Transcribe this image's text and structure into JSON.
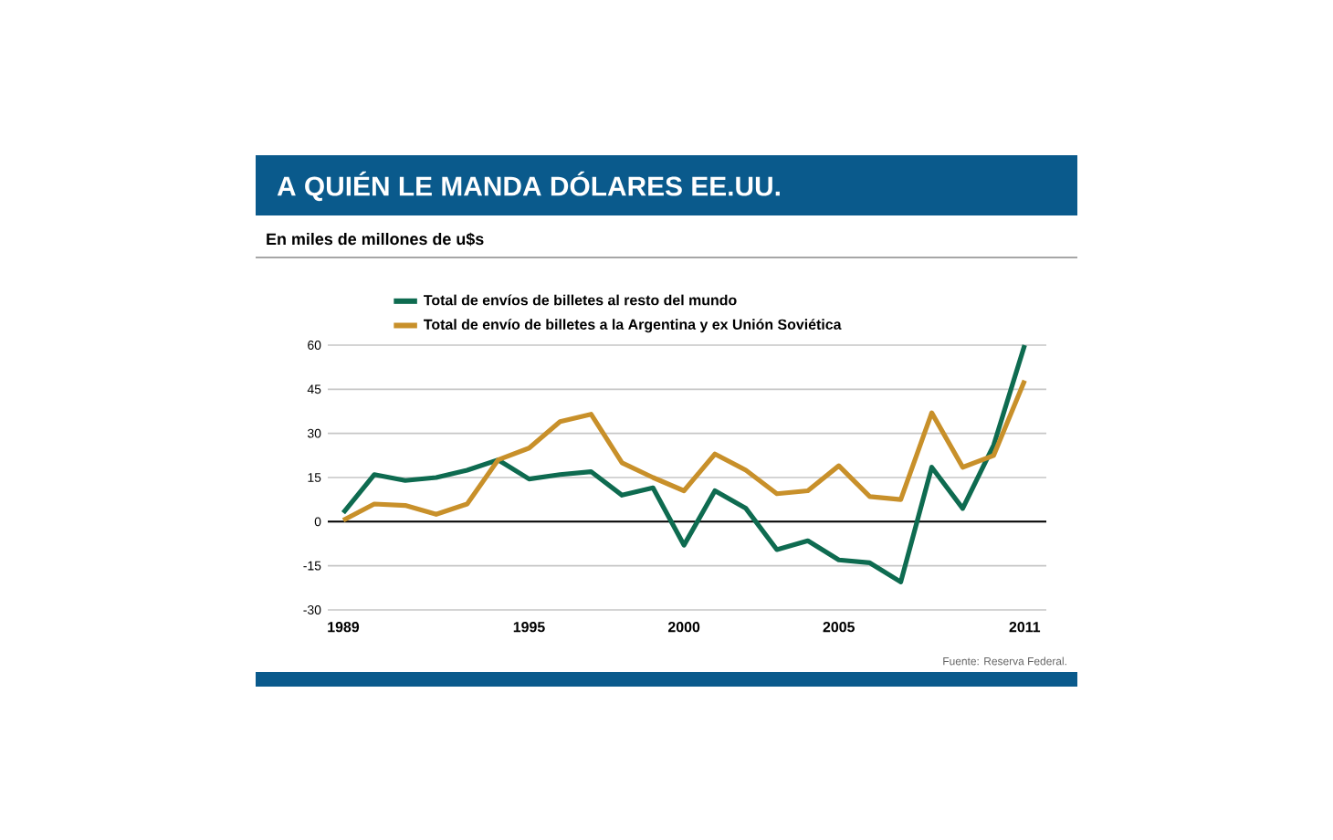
{
  "chart_data": {
    "type": "line",
    "title": "A QUIÉN LE MANDA DÓLARES EE.UU.",
    "subtitle": "En miles de millones de u$s",
    "annotations": [
      "Fuente: Reserva Federal."
    ],
    "x": [
      1989,
      1990,
      1991,
      1992,
      1993,
      1994,
      1995,
      1996,
      1997,
      1998,
      1999,
      2000,
      2001,
      2002,
      2003,
      2004,
      2005,
      2006,
      2007,
      2008,
      2009,
      2010,
      2011
    ],
    "series": [
      {
        "name": "Total de envíos de billetes al resto del mundo",
        "color": "#0e6b50",
        "values": [
          3,
          16,
          14,
          15,
          17.5,
          21,
          14.5,
          16,
          17,
          9,
          11.5,
          -8,
          10.5,
          4.5,
          -9.5,
          -6.5,
          -13,
          -14,
          -20.5,
          18.5,
          4.5,
          26,
          60
        ]
      },
      {
        "name": "Total de envío de billetes a la Argentina y ex Unión Soviética",
        "color": "#c8902a",
        "values": [
          0.5,
          6,
          5.5,
          2.5,
          6,
          21,
          25,
          34,
          36.5,
          20,
          15,
          10.5,
          23,
          17.5,
          9.5,
          10.5,
          19,
          8.5,
          7.5,
          37,
          18.5,
          22.5,
          48
        ]
      }
    ],
    "xlim": [
      1988.5,
      2011.7
    ],
    "ylim": [
      -30,
      60
    ],
    "xticks": [
      1989,
      1995,
      2000,
      2005,
      2011
    ],
    "yticks": [
      -30,
      -15,
      0,
      15,
      30,
      45,
      60
    ],
    "ref_lines": [
      {
        "axis": "y",
        "value": 0,
        "color": "#000000"
      }
    ],
    "grid": "y",
    "legend": "top left",
    "marker": "none",
    "line_style": "solid"
  }
}
